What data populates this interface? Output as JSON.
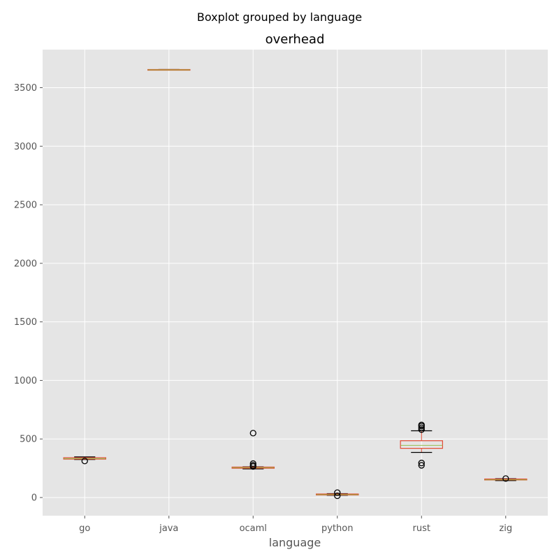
{
  "chart_data": {
    "type": "boxplot",
    "suptitle": "Boxplot grouped by language",
    "title": "overhead",
    "xlabel": "language",
    "ylabel": "",
    "ylim": [
      -155,
      3825
    ],
    "yticks": [
      0,
      500,
      1000,
      1500,
      2000,
      2500,
      3000,
      3500
    ],
    "grid": true,
    "categories": [
      "go",
      "java",
      "ocaml",
      "python",
      "rust",
      "zig"
    ],
    "boxes": [
      {
        "name": "go",
        "whislo": 325,
        "q1": 328,
        "med": 332,
        "q3": 340,
        "whishi": 347,
        "fliers": [
          312
        ]
      },
      {
        "name": "java",
        "whislo": 3650,
        "q1": 3650,
        "med": 3652,
        "q3": 3655,
        "whishi": 3655,
        "fliers": []
      },
      {
        "name": "ocaml",
        "whislo": 245,
        "q1": 250,
        "med": 255,
        "q3": 260,
        "whishi": 262,
        "fliers": [
          550,
          290,
          275,
          265
        ]
      },
      {
        "name": "python",
        "whislo": 20,
        "q1": 22,
        "med": 25,
        "q3": 30,
        "whishi": 33,
        "fliers": [
          42,
          15
        ]
      },
      {
        "name": "rust",
        "whislo": 385,
        "q1": 420,
        "med": 445,
        "q3": 485,
        "whishi": 570,
        "fliers": [
          620,
          610,
          595,
          580,
          295,
          275
        ]
      },
      {
        "name": "zig",
        "whislo": 145,
        "q1": 150,
        "med": 152,
        "q3": 158,
        "whishi": 160,
        "fliers": [
          162
        ]
      }
    ],
    "colors": {
      "box": "#e24a33",
      "median": "#8eba42",
      "whisker": "#000000",
      "flier": "#000000",
      "background": "#e5e5e5",
      "grid": "#ffffff"
    }
  }
}
